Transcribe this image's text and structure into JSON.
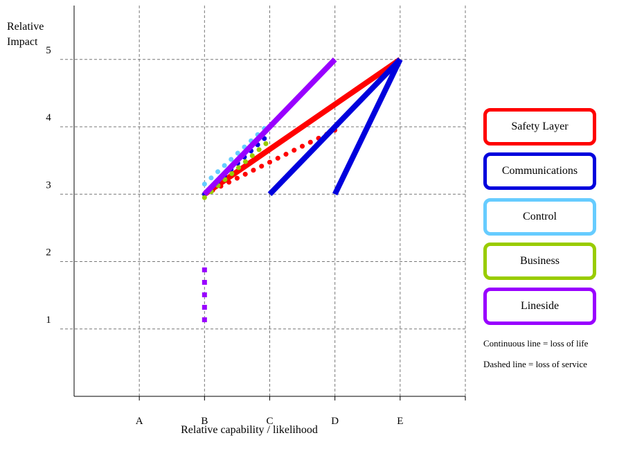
{
  "chart_data": {
    "type": "line",
    "xlabel": "Relative capability / likelihood",
    "ylabel_lines": [
      "Relative",
      "Impact"
    ],
    "categories": [
      "A",
      "B",
      "C",
      "D",
      "E"
    ],
    "x_index_range": [
      0,
      6
    ],
    "ylim": [
      0,
      5.8
    ],
    "y_ticks": [
      1,
      2,
      3,
      4,
      5
    ],
    "grid": true,
    "legend_position": "right",
    "series": [
      {
        "name": "Safety Layer",
        "color": "#ff0000",
        "segments": [
          {
            "style": "solid",
            "points": [
              [
                "B",
                3.0
              ],
              [
                "E",
                5.0
              ]
            ]
          },
          {
            "style": "dotted",
            "points": [
              [
                "B",
                3.0
              ],
              [
                "D",
                3.95
              ]
            ]
          }
        ]
      },
      {
        "name": "Communications",
        "color": "#0000dd",
        "segments": [
          {
            "style": "solid",
            "points": [
              [
                "C",
                3.0
              ],
              [
                "E",
                5.0
              ]
            ]
          },
          {
            "style": "solid",
            "points": [
              [
                "D",
                3.0
              ],
              [
                "E",
                5.0
              ]
            ]
          },
          {
            "style": "dotted",
            "points": [
              [
                "B",
                3.0
              ],
              [
                "C",
                3.9
              ]
            ]
          }
        ]
      },
      {
        "name": "Control",
        "color": "#66ccff",
        "segments": [
          {
            "style": "dotted",
            "points": [
              [
                "B",
                3.15
              ],
              [
                "C",
                4.05
              ]
            ]
          }
        ]
      },
      {
        "name": "Business",
        "color": "#99cc00",
        "segments": [
          {
            "style": "dotted",
            "points": [
              [
                "B",
                2.95
              ],
              [
                "C",
                3.8
              ]
            ]
          }
        ]
      },
      {
        "name": "Lineside",
        "color": "#9900ff",
        "segments": [
          {
            "style": "solid",
            "points": [
              [
                "B",
                3.0
              ],
              [
                "D",
                5.0
              ]
            ]
          },
          {
            "style": "dotted",
            "points": [
              [
                "B",
                1.1
              ],
              [
                "B",
                2.0
              ]
            ]
          }
        ]
      }
    ]
  },
  "legend": [
    {
      "label": "Safety Layer",
      "color": "#ff0000"
    },
    {
      "label": "Communications",
      "color": "#0000dd"
    },
    {
      "label": "Control",
      "color": "#66ccff"
    },
    {
      "label": "Business",
      "color": "#99cc00"
    },
    {
      "label": "Lineside",
      "color": "#9900ff"
    }
  ],
  "notes": {
    "continuous": "Continuous line = loss of life",
    "dashed": "Dashed line = loss of service"
  }
}
